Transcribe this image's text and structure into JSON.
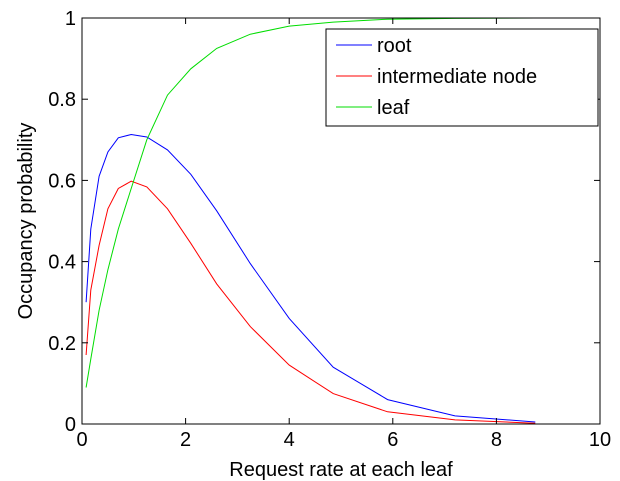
{
  "chart_data": {
    "type": "line",
    "title": "",
    "xlabel": "Request rate at each leaf",
    "ylabel": "Occupancy probability",
    "xlim": [
      0,
      10
    ],
    "ylim": [
      0,
      1
    ],
    "xticks": [
      0,
      2,
      4,
      6,
      8,
      10
    ],
    "xtick_labels": [
      "0",
      "2",
      "4",
      "6",
      "8",
      "10"
    ],
    "yticks": [
      0,
      0.2,
      0.4,
      0.6,
      0.8,
      1
    ],
    "ytick_labels": [
      "0",
      "0.2",
      "0.4",
      "0.6",
      "0.8",
      "1"
    ],
    "grid": false,
    "legend_position": "top-right",
    "series": [
      {
        "name": "root",
        "color": "#0000ff",
        "x": [
          0.08,
          0.17,
          0.33,
          0.5,
          0.7,
          0.95,
          1.25,
          1.65,
          2.1,
          2.6,
          3.25,
          4.0,
          4.85,
          5.9,
          7.2,
          8.75
        ],
        "y": [
          0.3,
          0.48,
          0.61,
          0.67,
          0.705,
          0.713,
          0.707,
          0.675,
          0.615,
          0.525,
          0.395,
          0.26,
          0.14,
          0.06,
          0.02,
          0.005
        ]
      },
      {
        "name": "intermediate node",
        "color": "#ff0000",
        "x": [
          0.08,
          0.17,
          0.33,
          0.5,
          0.7,
          0.95,
          1.25,
          1.65,
          2.1,
          2.6,
          3.25,
          4.0,
          4.85,
          5.9,
          7.2,
          8.75
        ],
        "y": [
          0.17,
          0.33,
          0.44,
          0.53,
          0.58,
          0.598,
          0.584,
          0.53,
          0.445,
          0.345,
          0.24,
          0.145,
          0.075,
          0.03,
          0.01,
          0.002
        ]
      },
      {
        "name": "leaf",
        "color": "#00dd00",
        "x": [
          0.08,
          0.17,
          0.33,
          0.5,
          0.7,
          0.95,
          1.25,
          1.65,
          2.1,
          2.6,
          3.25,
          4.0,
          4.85,
          5.9,
          7.2,
          8.75
        ],
        "y": [
          0.09,
          0.16,
          0.28,
          0.38,
          0.48,
          0.58,
          0.7,
          0.81,
          0.875,
          0.925,
          0.96,
          0.98,
          0.99,
          0.997,
          0.999,
          1.0
        ]
      }
    ]
  }
}
